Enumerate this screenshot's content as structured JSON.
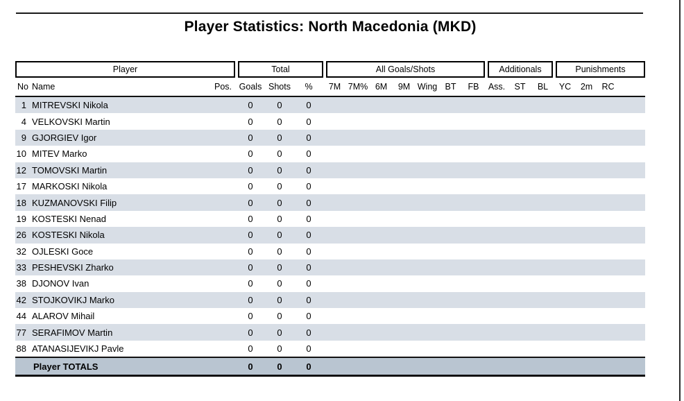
{
  "page": {
    "title": "Player Statistics: North Macedonia (MKD)"
  },
  "table": {
    "group_headers": [
      "Player",
      "Total",
      "All Goals/Shots",
      "Additionals",
      "Punishments"
    ],
    "column_headers": {
      "no": "No.",
      "name": "Name",
      "pos": "Pos.",
      "goals": "Goals",
      "shots": "Shots",
      "pct": "%",
      "m7": "7M",
      "m7pct": "7M%",
      "m6": "6M",
      "m9": "9M",
      "wing": "Wing",
      "bt": "BT",
      "fb": "FB",
      "ass": "Ass.",
      "st": "ST",
      "bl": "BL",
      "yc": "YC",
      "twomin": "2m",
      "rc": "RC"
    },
    "rows": [
      {
        "no": "1",
        "name": "MITREVSKI Nikola",
        "goals": "0",
        "shots": "0",
        "pct": "0"
      },
      {
        "no": "4",
        "name": "VELKOVSKI Martin",
        "goals": "0",
        "shots": "0",
        "pct": "0"
      },
      {
        "no": "9",
        "name": "GJORGIEV Igor",
        "goals": "0",
        "shots": "0",
        "pct": "0"
      },
      {
        "no": "10",
        "name": "MITEV Marko",
        "goals": "0",
        "shots": "0",
        "pct": "0"
      },
      {
        "no": "12",
        "name": "TOMOVSKI Martin",
        "goals": "0",
        "shots": "0",
        "pct": "0"
      },
      {
        "no": "17",
        "name": "MARKOSKI Nikola",
        "goals": "0",
        "shots": "0",
        "pct": "0"
      },
      {
        "no": "18",
        "name": "KUZMANOVSKI Filip",
        "goals": "0",
        "shots": "0",
        "pct": "0"
      },
      {
        "no": "19",
        "name": "KOSTESKI Nenad",
        "goals": "0",
        "shots": "0",
        "pct": "0"
      },
      {
        "no": "26",
        "name": "KOSTESKI Nikola",
        "goals": "0",
        "shots": "0",
        "pct": "0"
      },
      {
        "no": "32",
        "name": "OJLESKI Goce",
        "goals": "0",
        "shots": "0",
        "pct": "0"
      },
      {
        "no": "33",
        "name": "PESHEVSKI Zharko",
        "goals": "0",
        "shots": "0",
        "pct": "0"
      },
      {
        "no": "38",
        "name": "DJONOV Ivan",
        "goals": "0",
        "shots": "0",
        "pct": "0"
      },
      {
        "no": "42",
        "name": "STOJKOVIKJ Marko",
        "goals": "0",
        "shots": "0",
        "pct": "0"
      },
      {
        "no": "44",
        "name": "ALAROV Mihail",
        "goals": "0",
        "shots": "0",
        "pct": "0"
      },
      {
        "no": "77",
        "name": "SERAFIMOV Martin",
        "goals": "0",
        "shots": "0",
        "pct": "0"
      },
      {
        "no": "88",
        "name": "ATANASIJEVIKJ Pavle",
        "goals": "0",
        "shots": "0",
        "pct": "0"
      }
    ],
    "totals": {
      "label": "Player TOTALS",
      "goals": "0",
      "shots": "0",
      "pct": "0"
    }
  },
  "colors": {
    "row_stripe": "#d8dee6",
    "totals_bg": "#b9c5d1",
    "border": "#000000"
  }
}
